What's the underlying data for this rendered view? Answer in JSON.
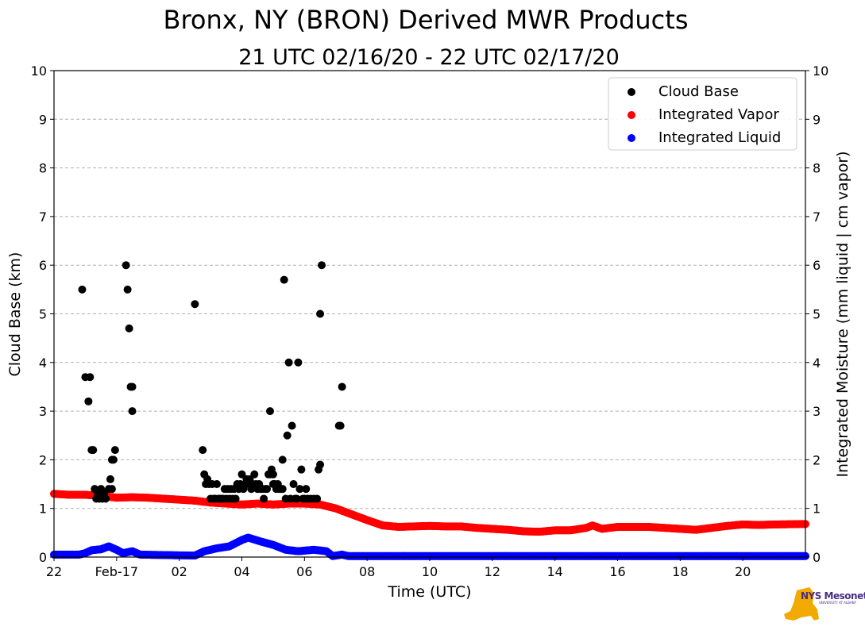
{
  "chart_data": {
    "type": "scatter",
    "title": "Bronx, NY (BRON) Derived MWR Products",
    "subtitle": "21 UTC 02/16/20 - 22 UTC 02/17/20",
    "xlabel": "Time (UTC)",
    "ylabel_left": "Cloud Base (km)",
    "ylabel_right": "Integrated Moisture (mm liquid | cm vapor)",
    "xlim": [
      0,
      24
    ],
    "ylim": [
      0,
      10
    ],
    "x_ticks": [
      {
        "x": 0,
        "label": "22"
      },
      {
        "x": 2,
        "label": "Feb-17"
      },
      {
        "x": 4,
        "label": "02"
      },
      {
        "x": 6,
        "label": "04"
      },
      {
        "x": 8,
        "label": "06"
      },
      {
        "x": 10,
        "label": "08"
      },
      {
        "x": 12,
        "label": "10"
      },
      {
        "x": 14,
        "label": "12"
      },
      {
        "x": 16,
        "label": "14"
      },
      {
        "x": 18,
        "label": "16"
      },
      {
        "x": 20,
        "label": "18"
      },
      {
        "x": 22,
        "label": "20"
      }
    ],
    "y_ticks": [
      "0",
      "1",
      "2",
      "3",
      "4",
      "5",
      "6",
      "7",
      "8",
      "9",
      "10"
    ],
    "grid": true,
    "legend_position": "top-right",
    "x_units": "hours since 22 UTC 02/16/20",
    "series": [
      {
        "name": "Cloud Base",
        "color": "#000000",
        "points": [
          [
            0.9,
            5.5
          ],
          [
            1.0,
            3.7
          ],
          [
            1.1,
            3.2
          ],
          [
            1.15,
            3.7
          ],
          [
            1.2,
            2.2
          ],
          [
            1.25,
            2.2
          ],
          [
            1.3,
            1.4
          ],
          [
            1.35,
            1.2
          ],
          [
            1.4,
            1.3
          ],
          [
            1.45,
            1.2
          ],
          [
            1.5,
            1.4
          ],
          [
            1.55,
            1.2
          ],
          [
            1.6,
            1.3
          ],
          [
            1.65,
            1.2
          ],
          [
            1.75,
            1.4
          ],
          [
            1.8,
            1.6
          ],
          [
            1.85,
            1.4
          ],
          [
            1.85,
            2.0
          ],
          [
            1.9,
            2.0
          ],
          [
            1.95,
            2.2
          ],
          [
            2.3,
            6.0
          ],
          [
            2.35,
            5.5
          ],
          [
            2.4,
            4.7
          ],
          [
            2.45,
            3.5
          ],
          [
            2.5,
            3.0
          ],
          [
            2.5,
            3.5
          ],
          [
            4.5,
            5.2
          ],
          [
            4.75,
            2.2
          ],
          [
            4.8,
            1.7
          ],
          [
            4.85,
            1.5
          ],
          [
            4.9,
            1.6
          ],
          [
            4.95,
            1.5
          ],
          [
            5.0,
            1.2
          ],
          [
            5.05,
            1.5
          ],
          [
            5.1,
            1.2
          ],
          [
            5.15,
            1.2
          ],
          [
            5.2,
            1.5
          ],
          [
            5.25,
            1.2
          ],
          [
            5.3,
            1.2
          ],
          [
            5.35,
            1.2
          ],
          [
            5.4,
            1.2
          ],
          [
            5.45,
            1.4
          ],
          [
            5.5,
            1.2
          ],
          [
            5.55,
            1.4
          ],
          [
            5.6,
            1.2
          ],
          [
            5.65,
            1.4
          ],
          [
            5.7,
            1.2
          ],
          [
            5.75,
            1.4
          ],
          [
            5.8,
            1.2
          ],
          [
            5.85,
            1.5
          ],
          [
            5.9,
            1.4
          ],
          [
            5.95,
            1.5
          ],
          [
            6.0,
            1.7
          ],
          [
            6.05,
            1.4
          ],
          [
            6.1,
            1.5
          ],
          [
            6.15,
            1.6
          ],
          [
            6.2,
            1.5
          ],
          [
            6.25,
            1.6
          ],
          [
            6.3,
            1.4
          ],
          [
            6.35,
            1.5
          ],
          [
            6.4,
            1.7
          ],
          [
            6.45,
            1.5
          ],
          [
            6.5,
            1.4
          ],
          [
            6.55,
            1.5
          ],
          [
            6.6,
            1.4
          ],
          [
            6.65,
            1.4
          ],
          [
            6.7,
            1.2
          ],
          [
            6.75,
            1.4
          ],
          [
            6.8,
            1.4
          ],
          [
            6.85,
            1.7
          ],
          [
            6.9,
            1.7
          ],
          [
            6.9,
            3.0
          ],
          [
            6.95,
            1.8
          ],
          [
            7.0,
            1.7
          ],
          [
            7.0,
            1.5
          ],
          [
            7.05,
            1.5
          ],
          [
            7.1,
            1.4
          ],
          [
            7.15,
            1.5
          ],
          [
            7.2,
            1.4
          ],
          [
            7.25,
            1.4
          ],
          [
            7.3,
            1.4
          ],
          [
            7.3,
            2.0
          ],
          [
            7.35,
            5.7
          ],
          [
            7.4,
            1.2
          ],
          [
            7.45,
            2.5
          ],
          [
            7.5,
            4.0
          ],
          [
            7.55,
            1.2
          ],
          [
            7.6,
            2.7
          ],
          [
            7.65,
            1.5
          ],
          [
            7.7,
            1.2
          ],
          [
            7.75,
            1.2
          ],
          [
            7.8,
            4.0
          ],
          [
            7.85,
            1.4
          ],
          [
            7.9,
            1.8
          ],
          [
            7.95,
            1.2
          ],
          [
            8.0,
            1.2
          ],
          [
            8.05,
            1.4
          ],
          [
            8.1,
            1.2
          ],
          [
            8.2,
            1.2
          ],
          [
            8.3,
            1.2
          ],
          [
            8.4,
            1.2
          ],
          [
            8.45,
            1.8
          ],
          [
            8.5,
            1.9
          ],
          [
            8.5,
            5.0
          ],
          [
            8.55,
            6.0
          ],
          [
            9.1,
            2.7
          ],
          [
            9.15,
            2.7
          ],
          [
            9.2,
            3.5
          ]
        ]
      },
      {
        "name": "Integrated Vapor",
        "color": "#ff0000",
        "curve": [
          [
            0,
            1.3
          ],
          [
            0.5,
            1.28
          ],
          [
            1,
            1.28
          ],
          [
            1.5,
            1.26
          ],
          [
            2,
            1.22
          ],
          [
            2.5,
            1.23
          ],
          [
            3,
            1.22
          ],
          [
            3.5,
            1.2
          ],
          [
            4,
            1.18
          ],
          [
            4.5,
            1.16
          ],
          [
            5,
            1.12
          ],
          [
            5.5,
            1.1
          ],
          [
            6,
            1.08
          ],
          [
            6.5,
            1.1
          ],
          [
            7,
            1.08
          ],
          [
            7.5,
            1.1
          ],
          [
            8,
            1.1
          ],
          [
            8.5,
            1.08
          ],
          [
            9,
            1.0
          ],
          [
            9.5,
            0.88
          ],
          [
            10,
            0.76
          ],
          [
            10.5,
            0.65
          ],
          [
            11,
            0.62
          ],
          [
            11.5,
            0.63
          ],
          [
            12,
            0.64
          ],
          [
            12.5,
            0.63
          ],
          [
            13,
            0.63
          ],
          [
            13.5,
            0.6
          ],
          [
            14,
            0.58
          ],
          [
            14.5,
            0.56
          ],
          [
            15,
            0.53
          ],
          [
            15.5,
            0.52
          ],
          [
            16,
            0.55
          ],
          [
            16.5,
            0.55
          ],
          [
            17,
            0.6
          ],
          [
            17.2,
            0.65
          ],
          [
            17.5,
            0.58
          ],
          [
            18,
            0.62
          ],
          [
            19,
            0.62
          ],
          [
            20,
            0.58
          ],
          [
            20.5,
            0.56
          ],
          [
            21,
            0.6
          ],
          [
            21.5,
            0.64
          ],
          [
            22,
            0.67
          ],
          [
            22.5,
            0.66
          ],
          [
            23,
            0.67
          ],
          [
            24,
            0.68
          ]
        ]
      },
      {
        "name": "Integrated Liquid",
        "color": "#0000ff",
        "curve": [
          [
            0,
            0.05
          ],
          [
            0.8,
            0.05
          ],
          [
            1.0,
            0.08
          ],
          [
            1.2,
            0.14
          ],
          [
            1.5,
            0.16
          ],
          [
            1.75,
            0.22
          ],
          [
            2.0,
            0.15
          ],
          [
            2.2,
            0.08
          ],
          [
            2.5,
            0.12
          ],
          [
            2.75,
            0.05
          ],
          [
            4.5,
            0.03
          ],
          [
            4.8,
            0.12
          ],
          [
            5.2,
            0.18
          ],
          [
            5.6,
            0.22
          ],
          [
            6.0,
            0.35
          ],
          [
            6.2,
            0.4
          ],
          [
            6.6,
            0.32
          ],
          [
            7.0,
            0.25
          ],
          [
            7.4,
            0.15
          ],
          [
            7.8,
            0.12
          ],
          [
            8.3,
            0.15
          ],
          [
            8.7,
            0.12
          ],
          [
            8.9,
            0.02
          ],
          [
            9.2,
            0.05
          ],
          [
            9.4,
            0.02
          ],
          [
            24,
            0.02
          ]
        ]
      }
    ]
  },
  "logo": {
    "text": "NYS Mesonet",
    "sub": "UNIVERSITY AT ALBANY"
  }
}
